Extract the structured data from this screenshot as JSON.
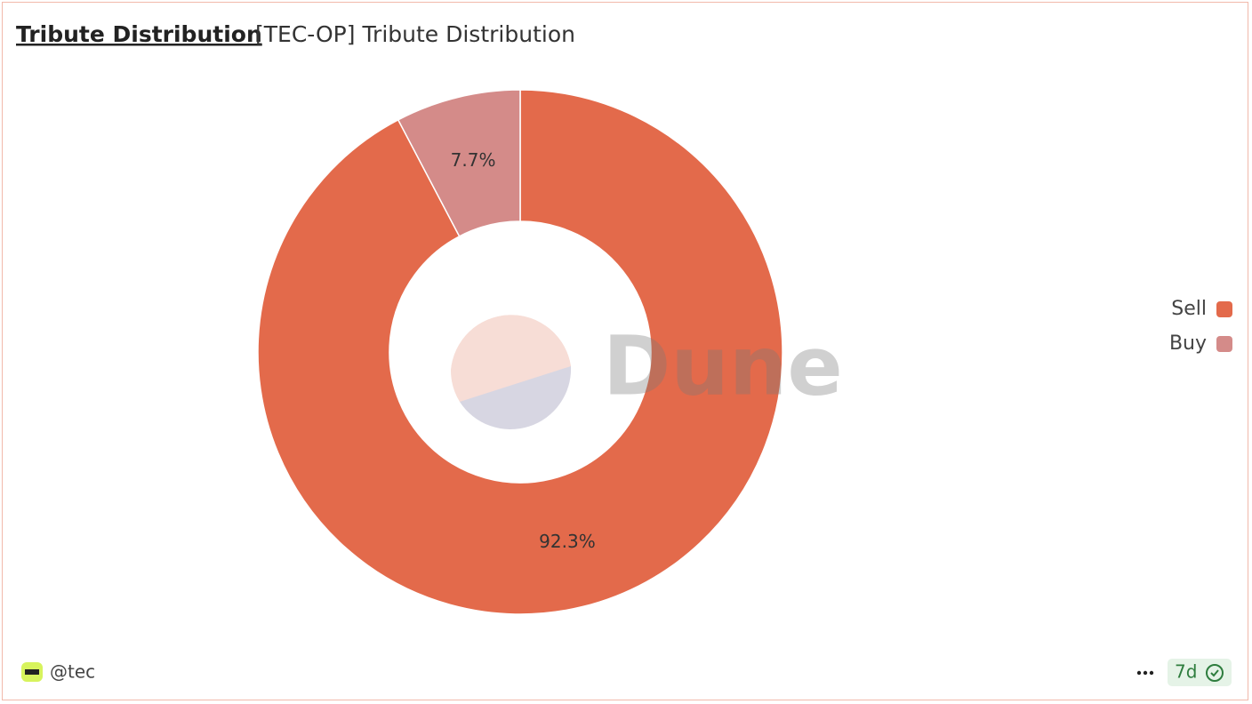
{
  "chart_data": {
    "type": "pie",
    "title": "Tribute Distribution",
    "subtitle": "[TEC-OP] Tribute Distribution",
    "categories": [
      "Sell",
      "Buy"
    ],
    "values": [
      92.3,
      7.7
    ],
    "value_labels": [
      "92.3%",
      "7.7%"
    ],
    "colors": [
      "#e36a4b",
      "#d48b89"
    ],
    "donut": true,
    "legend": "right",
    "watermark": "Dune"
  },
  "footer": {
    "author": "@tec",
    "freshness": "7d"
  }
}
